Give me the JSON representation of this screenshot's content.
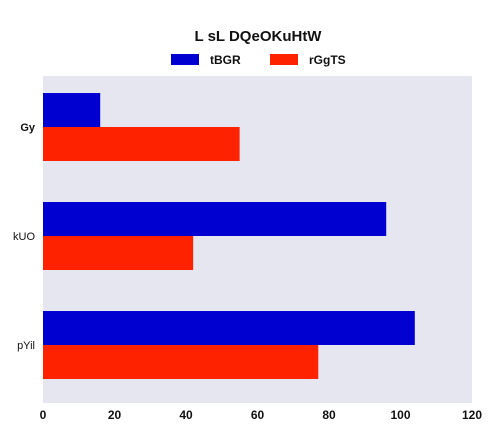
{
  "chart_data": {
    "type": "bar",
    "orientation": "horizontal",
    "title": "L sL DQeOKuHtW",
    "categories": [
      "Gy",
      "kUO",
      "pYil"
    ],
    "series": [
      {
        "name": "tBGR",
        "values": [
          16,
          96,
          104
        ],
        "color": "#0000d0"
      },
      {
        "name": "rGgTS",
        "values": [
          55,
          42,
          77
        ],
        "color": "#ff2200"
      }
    ],
    "xlim": [
      0,
      120
    ],
    "xticks": [
      0,
      20,
      40,
      60,
      80,
      100,
      120
    ],
    "xlabel": "",
    "ylabel": "",
    "legend_position": "top-center",
    "grid": false,
    "background": "#e6e6f0"
  }
}
